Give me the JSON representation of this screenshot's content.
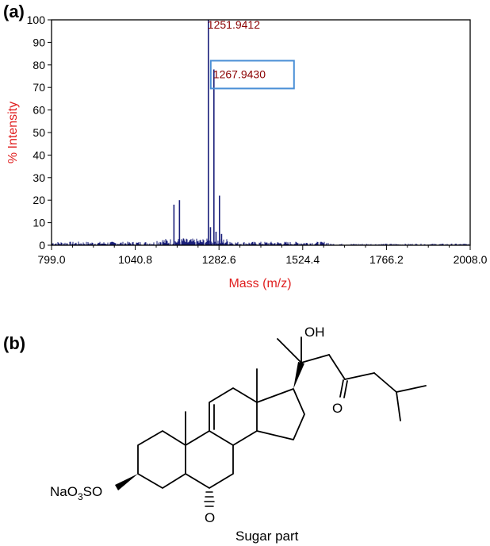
{
  "panel_a": {
    "label": "(a)"
  },
  "panel_b": {
    "label": "(b)",
    "labels": {
      "oh": "OH",
      "ketone_o": "O",
      "sulfate": {
        "base1": "NaO",
        "sub": "3",
        "base2": "SO"
      },
      "sugar_o": "O",
      "sugar_part": "Sugar part"
    }
  },
  "chart_data": {
    "type": "line",
    "title": "",
    "xlabel": "Mass (m/z)",
    "ylabel": "% Intensity",
    "xlim": [
      799.0,
      2008.0
    ],
    "ylim": [
      0,
      100
    ],
    "x_ticks": [
      "799.0",
      "1040.8",
      "1282.6",
      "1524.4",
      "1766.2",
      "2008.0"
    ],
    "y_ticks": [
      "0",
      "10",
      "20",
      "30",
      "40",
      "50",
      "60",
      "70",
      "80",
      "90",
      "100"
    ],
    "peaks": [
      {
        "x": 1152.5,
        "y": 18
      },
      {
        "x": 1168.5,
        "y": 20
      },
      {
        "x": 1180.0,
        "y": 3
      },
      {
        "x": 1251.9412,
        "y": 100,
        "label": "1251.9412"
      },
      {
        "x": 1267.943,
        "y": 78,
        "label": "1267.9430"
      },
      {
        "x": 1258.0,
        "y": 8
      },
      {
        "x": 1274.0,
        "y": 6
      },
      {
        "x": 1284.0,
        "y": 22
      },
      {
        "x": 1290.0,
        "y": 5
      }
    ],
    "annotation_box": {
      "label": "1267.9430"
    },
    "colors": {
      "spectrum": "#1a1f7a",
      "peak_label": "#8b0000",
      "axis_title": "#e02020",
      "box": "#4a8fd6"
    }
  }
}
